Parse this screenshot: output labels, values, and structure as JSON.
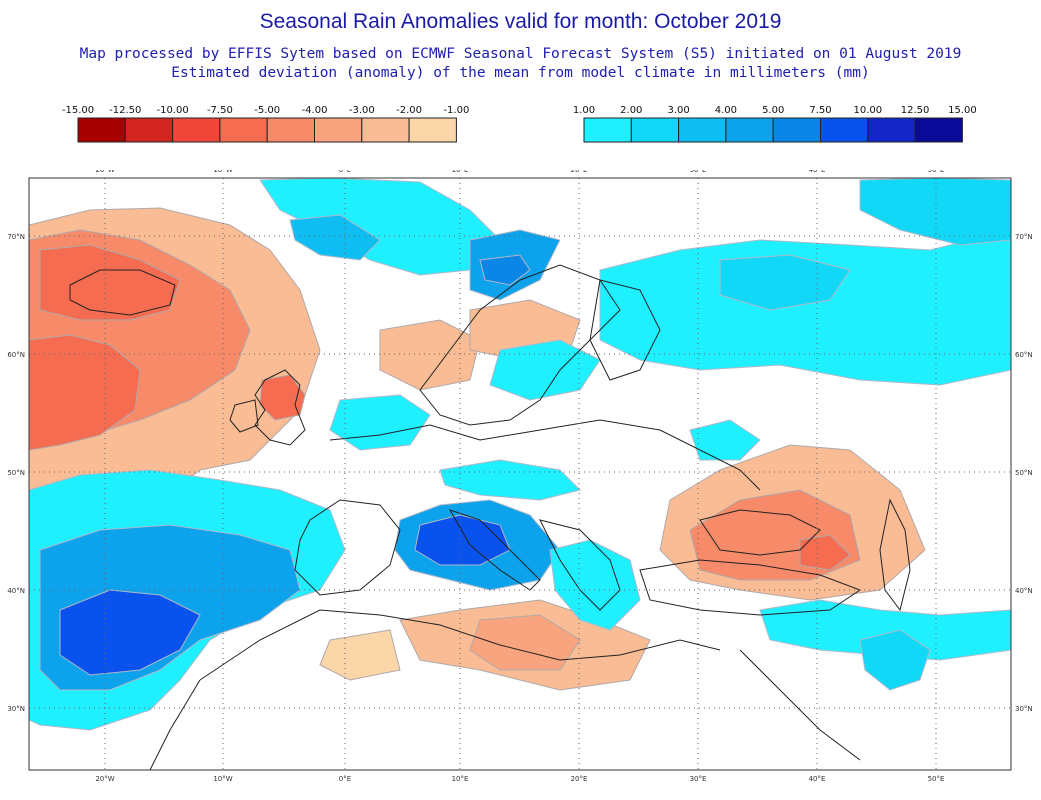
{
  "header": {
    "title": "Seasonal Rain Anomalies valid for month: October 2019",
    "subtitle_1": "Map processed by EFFIS Sytem based on ECMWF Seasonal Forecast System (S5) initiated on 01 August 2019",
    "subtitle_2": "Estimated deviation (anomaly) of the mean from model climate in millimeters (mm)"
  },
  "legend_negative": {
    "labels": [
      "-15.00",
      "-12.50",
      "-10.00",
      "-7.50",
      "-5.00",
      "-4.00",
      "-3.00",
      "-2.00",
      "-1.00"
    ],
    "colors": [
      "#a80000",
      "#d42420",
      "#f0463a",
      "#f56c50",
      "#f78a68",
      "#f8a47e",
      "#f9bc94",
      "#fbd6a8"
    ]
  },
  "legend_positive": {
    "labels": [
      "1.00",
      "2.00",
      "3.00",
      "4.00",
      "5.00",
      "7.50",
      "10.00",
      "12.50",
      "15.00"
    ],
    "colors": [
      "#1ef0ff",
      "#12d8f8",
      "#0ebef2",
      "#0ca2ec",
      "#0a86e6",
      "#0a52ee",
      "#1426c8",
      "#0a0a98"
    ]
  },
  "map": {
    "lon_labels": [
      "20°W",
      "10°W",
      "0°E",
      "10°E",
      "20°E",
      "30°E",
      "40°E",
      "50°E"
    ],
    "lat_labels": [
      "70°N",
      "60°N",
      "50°N",
      "40°N",
      "30°N"
    ],
    "colors": {
      "land_outline": "#222222",
      "contour": "#aaaaaa",
      "graticule": "#666666",
      "no_anomaly": "#ffffff"
    }
  }
}
